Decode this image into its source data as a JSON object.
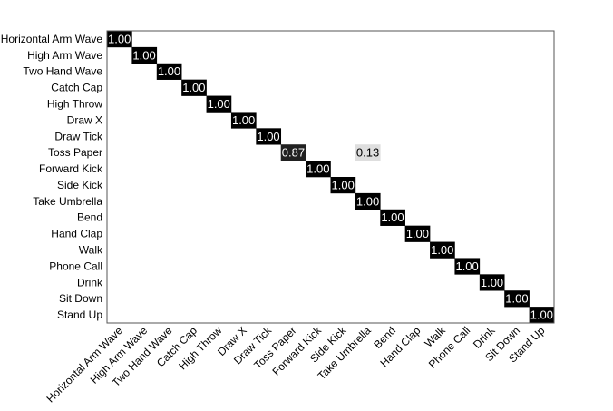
{
  "chart_data": {
    "type": "heatmap",
    "title": "",
    "xlabel": "",
    "ylabel": "",
    "x_categories": [
      "Horizontal Arm Wave",
      "High Arm Wave",
      "Two Hand Wave",
      "Catch Cap",
      "High Throw",
      "Draw X",
      "Draw Tick",
      "Toss Paper",
      "Forward Kick",
      "Side Kick",
      "Take Umbrella",
      "Bend",
      "Hand Clap",
      "Walk",
      "Phone Call",
      "Drink",
      "Sit Down",
      "Stand Up"
    ],
    "y_categories": [
      "Horizontal Arm Wave",
      "High Arm Wave",
      "Two Hand Wave",
      "Catch Cap",
      "High Throw",
      "Draw X",
      "Draw Tick",
      "Toss Paper",
      "Forward Kick",
      "Side Kick",
      "Take Umbrella",
      "Bend",
      "Hand Clap",
      "Walk",
      "Phone Call",
      "Drink",
      "Sit Down",
      "Stand Up"
    ],
    "cells": [
      {
        "row": 0,
        "col": 0,
        "value": 1.0,
        "label": "1.00"
      },
      {
        "row": 1,
        "col": 1,
        "value": 1.0,
        "label": "1.00"
      },
      {
        "row": 2,
        "col": 2,
        "value": 1.0,
        "label": "1.00"
      },
      {
        "row": 3,
        "col": 3,
        "value": 1.0,
        "label": "1.00"
      },
      {
        "row": 4,
        "col": 4,
        "value": 1.0,
        "label": "1.00"
      },
      {
        "row": 5,
        "col": 5,
        "value": 1.0,
        "label": "1.00"
      },
      {
        "row": 6,
        "col": 6,
        "value": 1.0,
        "label": "1.00"
      },
      {
        "row": 7,
        "col": 7,
        "value": 0.87,
        "label": "0.87"
      },
      {
        "row": 7,
        "col": 10,
        "value": 0.13,
        "label": "0.13"
      },
      {
        "row": 8,
        "col": 8,
        "value": 1.0,
        "label": "1.00"
      },
      {
        "row": 9,
        "col": 9,
        "value": 1.0,
        "label": "1.00"
      },
      {
        "row": 10,
        "col": 10,
        "value": 1.0,
        "label": "1.00"
      },
      {
        "row": 11,
        "col": 11,
        "value": 1.0,
        "label": "1.00"
      },
      {
        "row": 12,
        "col": 12,
        "value": 1.0,
        "label": "1.00"
      },
      {
        "row": 13,
        "col": 13,
        "value": 1.0,
        "label": "1.00"
      },
      {
        "row": 14,
        "col": 14,
        "value": 1.0,
        "label": "1.00"
      },
      {
        "row": 15,
        "col": 15,
        "value": 1.0,
        "label": "1.00"
      },
      {
        "row": 16,
        "col": 16,
        "value": 1.0,
        "label": "1.00"
      },
      {
        "row": 17,
        "col": 17,
        "value": 1.0,
        "label": "1.00"
      }
    ],
    "value_range": [
      0,
      1
    ],
    "colormap": "white-to-black (grayscale)",
    "grid": false,
    "legend": "none"
  }
}
